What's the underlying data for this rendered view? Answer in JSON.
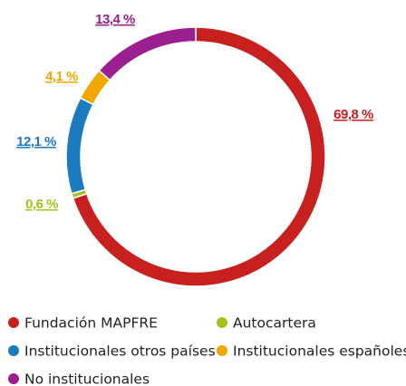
{
  "chart_data": {
    "type": "donut",
    "categories": [
      "Fundación MAPFRE",
      "Autocartera",
      "Institucionales otros países",
      "Institucionales españoles",
      "No institucionales"
    ],
    "values": [
      69.8,
      0.6,
      12.1,
      4.1,
      13.4
    ],
    "value_labels": [
      "69,8 %",
      "0,6 %",
      "12,1 %",
      "4,1 %",
      "13,4 %"
    ],
    "colors": [
      "#c8201e",
      "#a5c21c",
      "#1a7bc0",
      "#f0a800",
      "#9b1f8f"
    ]
  }
}
